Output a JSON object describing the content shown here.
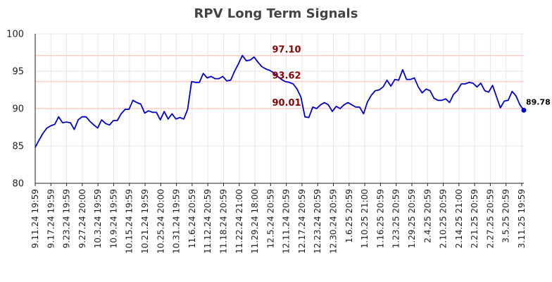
{
  "chart_data": {
    "type": "line",
    "title": "RPV Long Term Signals",
    "xlabel": "",
    "ylabel": "",
    "ylim": [
      80,
      100
    ],
    "yticks": [
      80,
      85,
      90,
      95,
      100
    ],
    "grid": true,
    "x_tick_labels": [
      "9.11.24 19:59",
      "9.17.24 19:59",
      "9.23.24 19:59",
      "9.27.24 20:00",
      "10.3.24 19:59",
      "10.9.24 19:59",
      "10.15.24 19:59",
      "10.21.24 19:59",
      "10.25.24 20:00",
      "10.31.24 19:59",
      "11.6.24 20:59",
      "11.12.24 20:59",
      "11.18.24 20:59",
      "11.22.24 21:00",
      "11.29.24 18:00",
      "12.5.24 20:59",
      "12.11.24 20:59",
      "12.17.24 20:59",
      "12.23.24 20:59",
      "12.30.24 20:59",
      "1.6.25 20:59",
      "1.10.25 21:00",
      "1.16.25 20:59",
      "1.23.25 20:59",
      "1.29.25 20:59",
      "2.4.25 20:59",
      "2.10.25 20:59",
      "2.14.25 21:00",
      "2.21.25 20:59",
      "2.27.25 20:59",
      "3.5.25 20:59",
      "3.11.25 19:59"
    ],
    "horizontal_lines": [
      {
        "value": 97.1,
        "label": "97.10"
      },
      {
        "value": 93.62,
        "label": "93.62"
      },
      {
        "value": 90.01,
        "label": "90.01"
      }
    ],
    "last_value_label": "89.78",
    "series": [
      {
        "color": "#0000cc",
        "values": [
          84.8,
          85.8,
          86.7,
          87.4,
          87.7,
          87.9,
          88.9,
          88.1,
          88.2,
          88.1,
          87.2,
          88.5,
          88.9,
          88.9,
          88.3,
          87.8,
          87.4,
          88.5,
          88.0,
          87.8,
          88.4,
          88.4,
          89.3,
          89.9,
          89.9,
          91.1,
          90.8,
          90.6,
          89.4,
          89.7,
          89.5,
          89.5,
          88.5,
          89.6,
          88.6,
          89.3,
          88.6,
          88.8,
          88.6,
          89.9,
          93.6,
          93.5,
          93.5,
          94.7,
          94.1,
          94.3,
          94.0,
          94.0,
          94.3,
          93.7,
          93.8,
          95.0,
          96.0,
          97.1,
          96.4,
          96.5,
          96.9,
          96.2,
          95.6,
          95.3,
          95.1,
          94.8,
          94.3,
          93.9,
          93.6,
          93.5,
          93.3,
          92.6,
          91.5,
          88.9,
          88.8,
          90.2,
          90.0,
          90.5,
          90.8,
          90.5,
          89.6,
          90.3,
          90.0,
          90.5,
          90.8,
          90.5,
          90.2,
          90.2,
          89.3,
          90.9,
          91.8,
          92.4,
          92.5,
          92.9,
          93.8,
          93.0,
          93.9,
          93.8,
          95.2,
          93.9,
          93.9,
          94.1,
          92.9,
          92.1,
          92.6,
          92.4,
          91.4,
          91.1,
          91.1,
          91.3,
          90.8,
          91.9,
          92.4,
          93.3,
          93.3,
          93.5,
          93.4,
          92.9,
          93.4,
          92.4,
          92.2,
          93.1,
          91.6,
          90.1,
          91.0,
          91.1,
          92.3,
          91.7,
          90.5,
          89.78
        ]
      }
    ]
  }
}
